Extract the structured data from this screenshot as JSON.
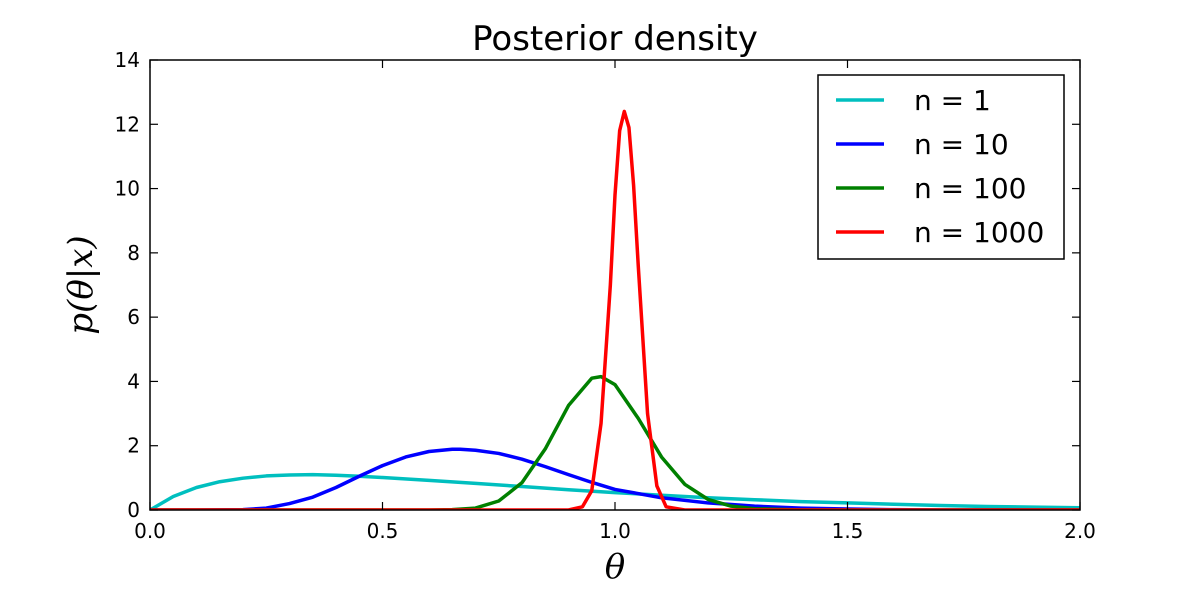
{
  "chart_data": {
    "type": "line",
    "title": "Posterior density",
    "xlabel": "θ",
    "ylabel": "p(θ|x)",
    "xlim": [
      0.0,
      2.0
    ],
    "ylim": [
      0,
      14
    ],
    "xticks": [
      0.0,
      0.5,
      1.0,
      1.5,
      2.0
    ],
    "xtick_labels": [
      "0.0",
      "0.5",
      "1.0",
      "1.5",
      "2.0"
    ],
    "yticks": [
      0,
      2,
      4,
      6,
      8,
      10,
      12,
      14
    ],
    "ytick_labels": [
      "0",
      "2",
      "4",
      "6",
      "8",
      "10",
      "12",
      "14"
    ],
    "legend_position": "top-right",
    "series": [
      {
        "name": "n = 1",
        "color": "#00bfbf",
        "x": [
          0.0,
          0.05,
          0.1,
          0.15,
          0.2,
          0.25,
          0.3,
          0.35,
          0.4,
          0.45,
          0.5,
          0.6,
          0.7,
          0.8,
          0.9,
          1.0,
          1.1,
          1.2,
          1.3,
          1.4,
          1.5,
          1.6,
          1.7,
          1.8,
          1.9,
          2.0
        ],
        "y": [
          0.0,
          0.42,
          0.7,
          0.88,
          0.99,
          1.06,
          1.09,
          1.1,
          1.08,
          1.05,
          1.01,
          0.92,
          0.83,
          0.73,
          0.63,
          0.54,
          0.46,
          0.38,
          0.32,
          0.26,
          0.22,
          0.18,
          0.14,
          0.11,
          0.09,
          0.07
        ]
      },
      {
        "name": "n = 10",
        "color": "#0000ff",
        "x": [
          0.0,
          0.1,
          0.2,
          0.25,
          0.3,
          0.35,
          0.4,
          0.45,
          0.5,
          0.55,
          0.6,
          0.65,
          0.667,
          0.7,
          0.75,
          0.8,
          0.85,
          0.9,
          0.95,
          1.0,
          1.1,
          1.2,
          1.3,
          1.4,
          1.5,
          1.6,
          1.7,
          2.0
        ],
        "y": [
          0.0,
          0.0,
          0.01,
          0.06,
          0.2,
          0.4,
          0.7,
          1.05,
          1.38,
          1.65,
          1.82,
          1.89,
          1.89,
          1.86,
          1.76,
          1.58,
          1.35,
          1.1,
          0.86,
          0.64,
          0.38,
          0.22,
          0.12,
          0.06,
          0.03,
          0.01,
          0.0,
          0.0
        ]
      },
      {
        "name": "n = 100",
        "color": "#008000",
        "x": [
          0.0,
          0.5,
          0.6,
          0.65,
          0.7,
          0.75,
          0.8,
          0.85,
          0.9,
          0.95,
          0.97,
          1.0,
          1.05,
          1.1,
          1.15,
          1.2,
          1.25,
          1.3,
          1.4,
          1.5,
          2.0
        ],
        "y": [
          0.0,
          0.0,
          0.0,
          0.01,
          0.06,
          0.28,
          0.85,
          1.9,
          3.25,
          4.1,
          4.15,
          3.9,
          2.85,
          1.65,
          0.8,
          0.33,
          0.12,
          0.04,
          0.0,
          0.0,
          0.0
        ]
      },
      {
        "name": "n = 1000",
        "color": "#ff0000",
        "x": [
          0.0,
          0.85,
          0.9,
          0.93,
          0.95,
          0.97,
          0.99,
          1.0,
          1.01,
          1.02,
          1.03,
          1.04,
          1.05,
          1.07,
          1.09,
          1.11,
          1.15,
          2.0
        ],
        "y": [
          0.0,
          0.0,
          0.0,
          0.1,
          0.6,
          2.7,
          7.0,
          9.8,
          11.8,
          12.4,
          11.9,
          10.1,
          7.6,
          3.0,
          0.75,
          0.1,
          0.0,
          0.0
        ]
      }
    ]
  }
}
